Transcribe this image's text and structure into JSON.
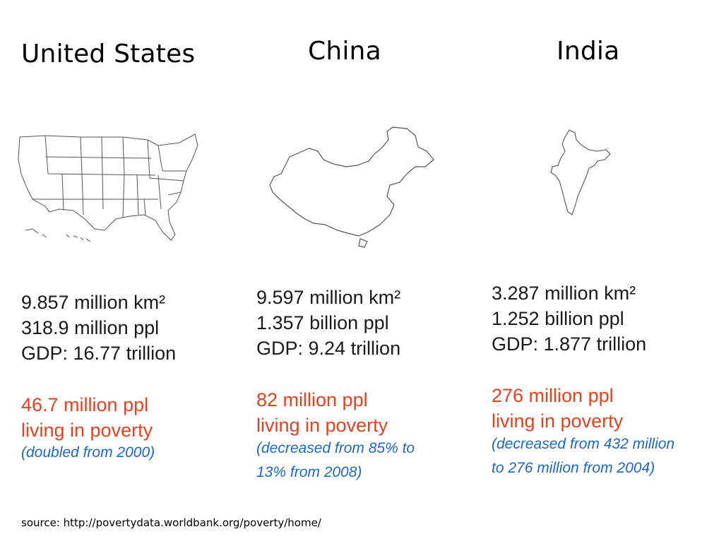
{
  "countries": [
    {
      "name": "United States",
      "area": "9.857 million km²",
      "population": "318.9 million ppl",
      "gdp": "GDP: 16.77 trillion",
      "poverty_line1": "46.7 million ppl",
      "poverty_line2": "living in poverty",
      "note_line1": "(doubled from 2000)",
      "note_line2": "",
      "map_icon": "usa-map-icon"
    },
    {
      "name": "China",
      "area": "9.597 million km²",
      "population": "1.357 billion ppl",
      "gdp": "GDP: 9.24 trillion",
      "poverty_line1": "82 million ppl",
      "poverty_line2": "living in poverty",
      "note_line1": "(decreased from 85% to",
      "note_line2": "13% from 2008)",
      "map_icon": "china-map-icon"
    },
    {
      "name": "India",
      "area": "3.287 million km²",
      "population": "1.252 billion ppl",
      "gdp": "GDP: 1.877 trillion",
      "poverty_line1": "276 million ppl",
      "poverty_line2": "living in poverty",
      "note_line1": "(decreased from 432 million",
      "note_line2": "to 276 million from 2004)",
      "map_icon": "india-map-icon"
    }
  ],
  "source": "source: http://povertydata.worldbank.org/poverty/home/",
  "colors": {
    "text": "#1a1a1a",
    "poverty": "#e8401c",
    "note": "#1967d2",
    "map_stroke": "#555555"
  }
}
